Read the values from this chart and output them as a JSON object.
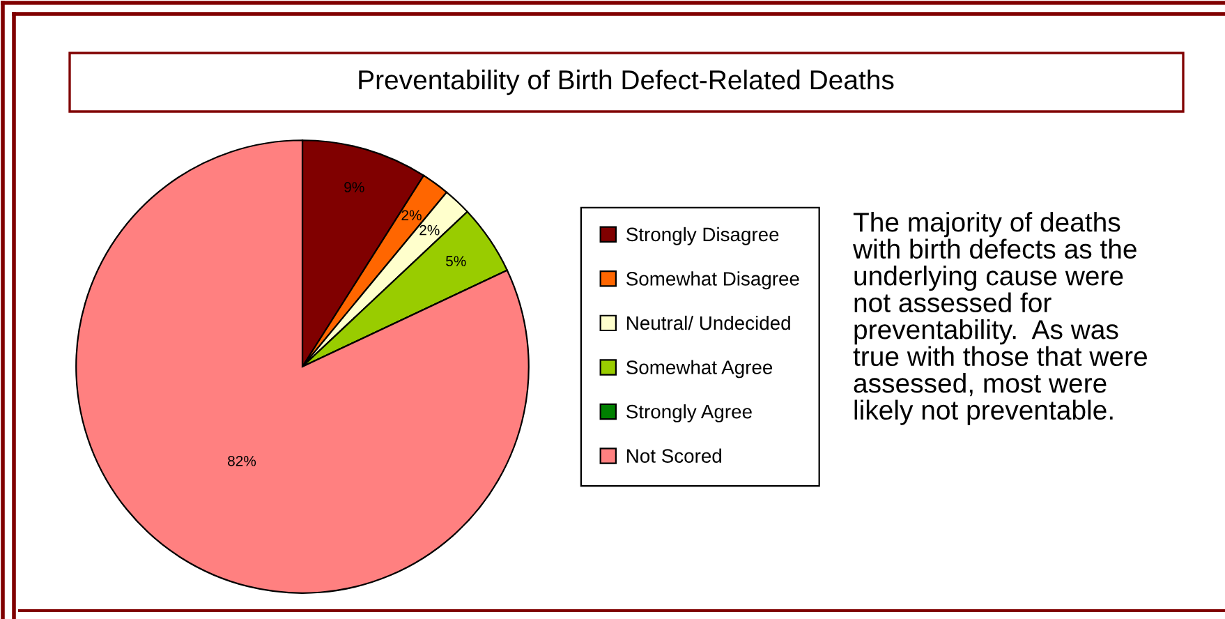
{
  "chart_data": {
    "type": "pie",
    "title": "Preventability of Birth Defect-Related Deaths",
    "categories": [
      "Strongly Disagree",
      "Somewhat Disagree",
      "Neutral/ Undecided",
      "Somewhat Agree",
      "Strongly Agree",
      "Not Scored"
    ],
    "values": [
      9,
      2,
      2,
      5,
      0,
      82
    ],
    "value_labels": [
      "9%",
      "2%",
      "2%",
      "5%",
      null,
      "82%"
    ],
    "colors": [
      "#800000",
      "#ff6600",
      "#ffffcc",
      "#99cc00",
      "#008000",
      "#ff8080"
    ],
    "legend": "right",
    "annotations": [
      "The majority of deaths\nwith birth defects as the\nunderlying cause were\nnot assessed for\npreventability.  As was\ntrue with those that were\nassessed, most were\nlikely not preventable."
    ]
  }
}
